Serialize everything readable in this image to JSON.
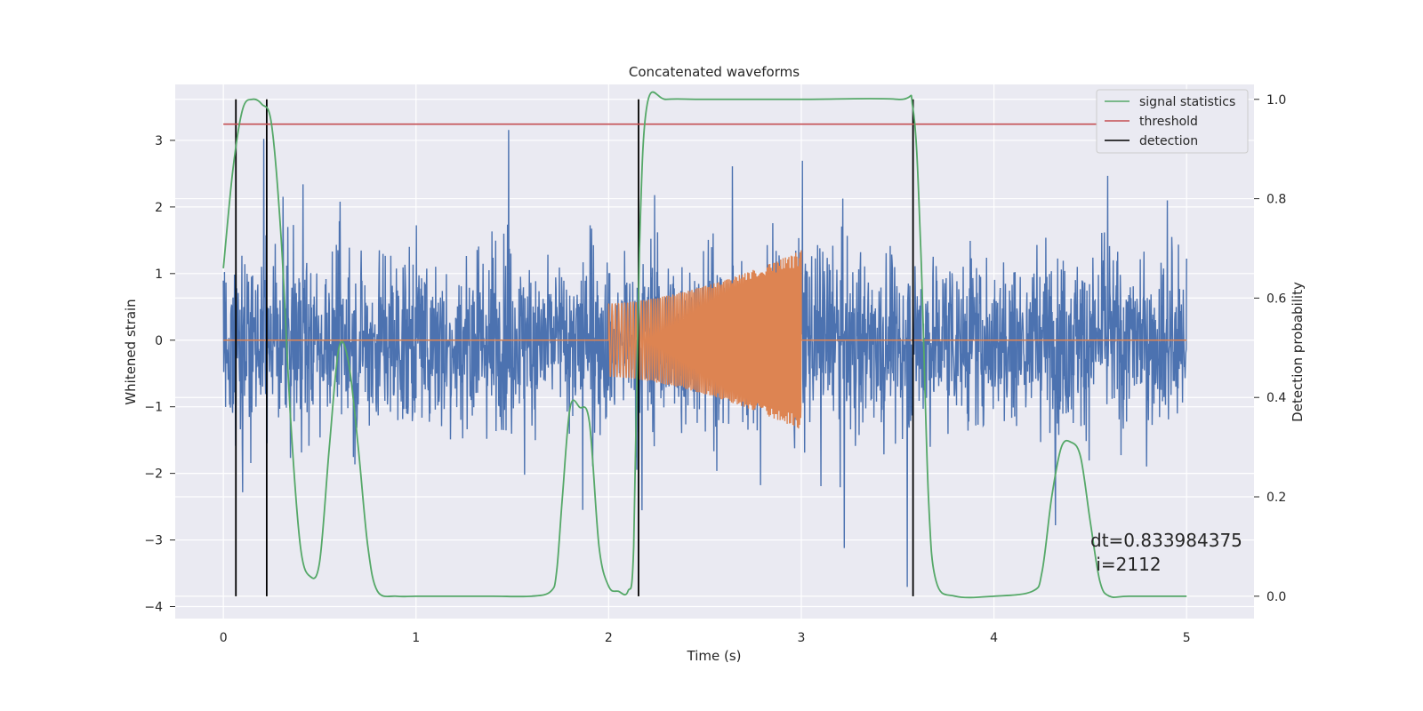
{
  "chart_data": {
    "type": "line",
    "title": "Concatenated waveforms",
    "xlabel": "Time (s)",
    "ylabel_left": "Whitened strain",
    "ylabel_right": "Detection probability",
    "xlim": [
      -0.25,
      5.35
    ],
    "ylim_left": [
      -4.18,
      3.84
    ],
    "ylim_right": [
      -0.045,
      1.03
    ],
    "xticks": [
      "0",
      "1",
      "2",
      "3",
      "4",
      "5"
    ],
    "yticks_left": [
      "3",
      "2",
      "1",
      "0",
      "−1",
      "−2",
      "−3",
      "−4"
    ],
    "yticks_right": [
      "1.0",
      "0.8",
      "0.6",
      "0.4",
      "0.2",
      "0.0"
    ],
    "grid": true,
    "legend_position": "top-right",
    "legend": [
      {
        "name": "signal statistics",
        "color": "#55a868"
      },
      {
        "name": "threshold",
        "color": "#c44e52"
      },
      {
        "name": "detection",
        "color": "#000000"
      }
    ],
    "series": [
      {
        "name": "whitened strain (noise)",
        "axis": "left",
        "color": "#4c72b0",
        "x_range": [
          0,
          5
        ],
        "typical_amplitude": 0.9,
        "peak_range": [
          -3.9,
          3.5
        ]
      },
      {
        "name": "injected waveform",
        "axis": "left",
        "color": "#dd8452",
        "x_range": [
          0,
          5
        ],
        "active_range": [
          2.0,
          3.0
        ],
        "amplitude_start": 0.55,
        "amplitude_end": 1.35
      },
      {
        "name": "signal statistics",
        "axis": "right",
        "color": "#55a868",
        "x": [
          0,
          0.05,
          0.1,
          0.15,
          0.2,
          0.25,
          0.3,
          0.35,
          0.4,
          0.45,
          0.5,
          0.55,
          0.6,
          0.65,
          0.7,
          0.75,
          0.8,
          0.9,
          1.0,
          1.2,
          1.4,
          1.6,
          1.7,
          1.73,
          1.76,
          1.8,
          1.85,
          1.9,
          1.95,
          2.0,
          2.05,
          2.1,
          2.13,
          2.16,
          2.2,
          2.3,
          2.5,
          3.0,
          3.5,
          3.58,
          3.62,
          3.66,
          3.7,
          3.8,
          4.0,
          4.2,
          4.25,
          4.3,
          4.35,
          4.4,
          4.45,
          4.5,
          4.55,
          4.6,
          4.7,
          5.0
        ],
        "y": [
          0.66,
          0.86,
          0.98,
          1.0,
          0.99,
          0.95,
          0.72,
          0.35,
          0.1,
          0.04,
          0.07,
          0.3,
          0.5,
          0.47,
          0.3,
          0.1,
          0.01,
          0.0,
          0.0,
          0.0,
          0.0,
          0.0,
          0.01,
          0.05,
          0.2,
          0.38,
          0.38,
          0.35,
          0.1,
          0.02,
          0.01,
          0.01,
          0.1,
          0.7,
          0.99,
          1.0,
          1.0,
          1.0,
          1.0,
          0.98,
          0.7,
          0.2,
          0.03,
          0.0,
          0.0,
          0.01,
          0.05,
          0.2,
          0.3,
          0.31,
          0.28,
          0.15,
          0.03,
          0.0,
          0.0,
          0.0
        ]
      },
      {
        "name": "threshold",
        "axis": "right",
        "color": "#c44e52",
        "x": [
          0,
          5
        ],
        "y": [
          0.95,
          0.95
        ]
      }
    ],
    "detections": [
      0.065,
      0.225,
      2.155,
      3.58
    ],
    "annotation": {
      "lines": [
        "dt=0.833984375",
        " i=2112"
      ]
    }
  }
}
